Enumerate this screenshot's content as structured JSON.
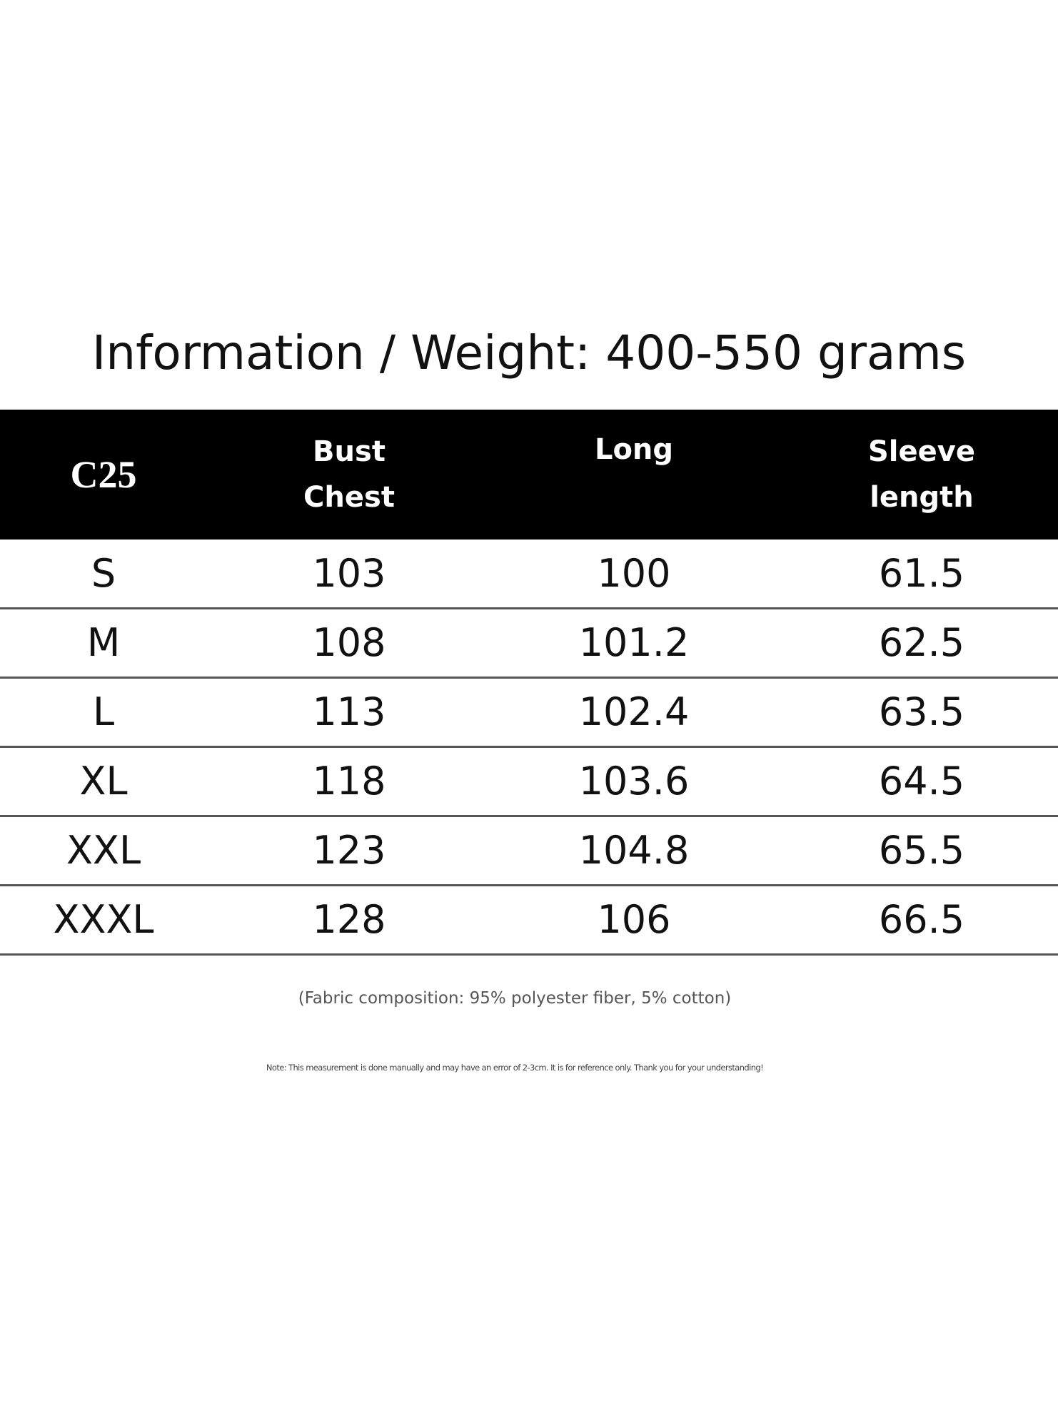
{
  "header": {
    "title": "Information / Weight: 400-550 grams"
  },
  "table": {
    "columns": [
      [
        "C25"
      ],
      [
        "Bust",
        "Chest"
      ],
      [
        "Long"
      ],
      [
        "Sleeve",
        "length"
      ]
    ],
    "rows": [
      [
        "S",
        "103",
        "100",
        "61.5"
      ],
      [
        "M",
        "108",
        "101.2",
        "62.5"
      ],
      [
        "L",
        "113",
        "102.4",
        "63.5"
      ],
      [
        "XL",
        "118",
        "103.6",
        "64.5"
      ],
      [
        "XXL",
        "123",
        "104.8",
        "65.5"
      ],
      [
        "XXXL",
        "128",
        "106",
        "66.5"
      ]
    ]
  },
  "footer": {
    "fabric": "(Fabric composition: 95% polyester fiber, 5% cotton)",
    "note": "Note: This measurement is done manually and may have an error of 2-3cm. It is for reference only. Thank you for your understanding!"
  }
}
